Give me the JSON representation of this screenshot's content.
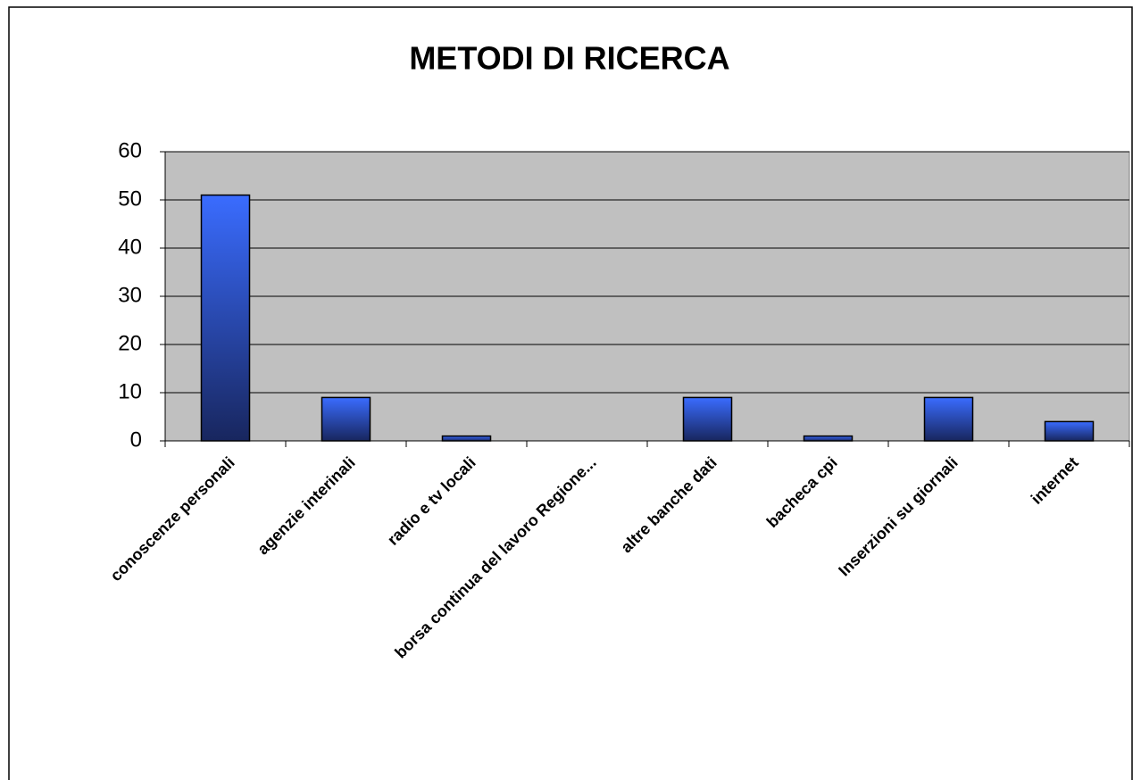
{
  "chart_data": {
    "type": "bar",
    "title": "METODI DI RICERCA",
    "categories": [
      "conoscenze personali",
      "agenzie interinali",
      "radio e tv locali",
      "borsa continua del lavoro Regione...",
      "altre banche dati",
      "bacheca cpi",
      "Inserzioni su giornali",
      "internet"
    ],
    "values": [
      51,
      9,
      1,
      0,
      9,
      1,
      9,
      4
    ],
    "color": "#2f5cf0",
    "ylim": [
      0,
      60
    ],
    "yticks": [
      0,
      10,
      20,
      30,
      40,
      50,
      60
    ],
    "grid": true
  }
}
